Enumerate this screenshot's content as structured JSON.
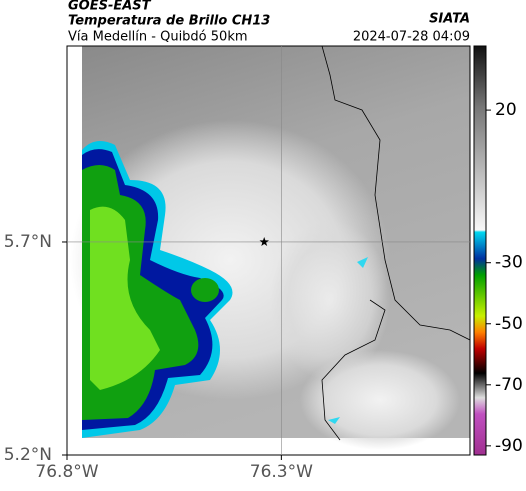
{
  "header": {
    "satellite": "GOES-EAST",
    "product": "Temperatura de Brillo CH13",
    "region": "Vía Medellín - Quibdó 50km",
    "source": "SIATA",
    "datetime": "2024-07-28 04:09"
  },
  "map": {
    "lonlim": [
      -76.8,
      -75.86
    ],
    "latlim": [
      5.2,
      6.16
    ],
    "lonticks": [
      {
        "value": -76.8,
        "label": "76.8°W"
      },
      {
        "value": -76.3,
        "label": "76.3°W"
      }
    ],
    "latticks": [
      {
        "value": 5.2,
        "label": "5.2°N"
      },
      {
        "value": 5.7,
        "label": "5.7°N"
      }
    ],
    "grid": true,
    "marker": {
      "lon": -76.34,
      "lat": 5.7
    }
  },
  "colorbar": {
    "lim": [
      41,
      -93
    ],
    "ticks": [
      20,
      -30,
      -50,
      -70,
      -90
    ]
  }
}
